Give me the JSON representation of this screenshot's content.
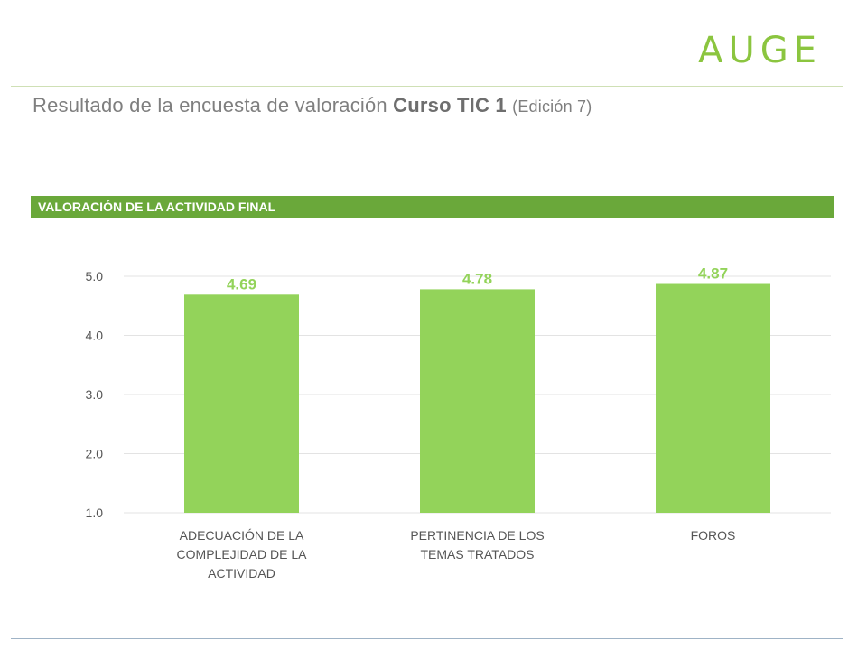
{
  "header": {
    "logo_text": "AUGE",
    "title_prefix": "Resultado de la encuesta de valoración",
    "title_course": "Curso TIC 1",
    "title_edition": "(Edición 7)"
  },
  "colors": {
    "accent": "#8bc53f",
    "bar": "#93d35a",
    "banner": "#6aa83a",
    "banner_text": "#ffffff",
    "grid": "#e3e3e3",
    "tick_text": "#555555",
    "category_text": "#555555"
  },
  "chart_data": {
    "type": "bar",
    "title": "VALORACIÓN DE LA ACTIVIDAD FINAL",
    "categories": [
      [
        "ADECUACIÓN DE LA",
        "COMPLEJIDAD DE LA",
        "ACTIVIDAD"
      ],
      [
        "PERTINENCIA DE LOS",
        "TEMAS TRATADOS"
      ],
      [
        "FOROS"
      ]
    ],
    "values": [
      4.69,
      4.78,
      4.87
    ],
    "data_labels": [
      "4.69",
      "4.78",
      "4.87"
    ],
    "yticks": [
      "1.0",
      "2.0",
      "3.0",
      "4.0",
      "5.0"
    ],
    "ylim": [
      1,
      5
    ],
    "grid": true,
    "legend": "none"
  }
}
